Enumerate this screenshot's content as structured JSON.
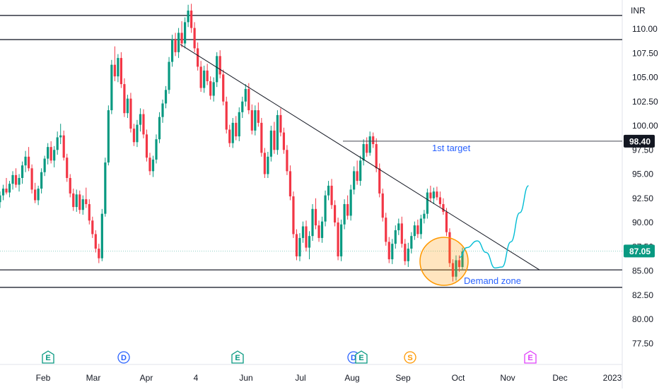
{
  "chart_data": {
    "type": "candlestick",
    "currency": "INR",
    "price_axis": {
      "ticks": [
        "110.00",
        "107.50",
        "105.00",
        "102.50",
        "100.00",
        "97.50",
        "95.00",
        "92.50",
        "90.00",
        "87.50",
        "85.00",
        "82.50",
        "80.00",
        "77.50"
      ],
      "range": [
        76.2,
        112.6
      ]
    },
    "time_axis": {
      "ticks": [
        "Feb",
        "Mar",
        "Apr",
        "4",
        "Jun",
        "Jul",
        "Aug",
        "Sep",
        "Oct",
        "Nov",
        "Dec",
        "2023"
      ]
    },
    "candles": [
      [
        92.1,
        93.2,
        91.5,
        92.8
      ],
      [
        92.8,
        93.9,
        92.3,
        93.5
      ],
      [
        93.5,
        94.6,
        92.9,
        93.1
      ],
      [
        93.1,
        94.3,
        92.6,
        94.0
      ],
      [
        94.0,
        95.3,
        93.4,
        94.9
      ],
      [
        94.9,
        95.6,
        93.6,
        93.9
      ],
      [
        93.9,
        95.0,
        93.2,
        94.6
      ],
      [
        94.6,
        96.3,
        94.0,
        95.9
      ],
      [
        95.9,
        97.4,
        95.2,
        96.8
      ],
      [
        96.8,
        97.8,
        95.3,
        95.6
      ],
      [
        95.6,
        96.0,
        93.0,
        93.4
      ],
      [
        93.4,
        94.1,
        92.0,
        92.3
      ],
      [
        92.3,
        93.8,
        91.8,
        93.5
      ],
      [
        93.5,
        95.6,
        93.0,
        95.2
      ],
      [
        95.2,
        96.9,
        94.8,
        96.6
      ],
      [
        96.6,
        98.2,
        96.0,
        97.8
      ],
      [
        97.8,
        98.4,
        96.1,
        96.4
      ],
      [
        96.4,
        97.9,
        95.7,
        97.5
      ],
      [
        97.5,
        99.4,
        97.0,
        98.8
      ],
      [
        98.8,
        100.2,
        98.1,
        99.0
      ],
      [
        99.0,
        99.5,
        96.4,
        96.7
      ],
      [
        96.7,
        97.1,
        94.2,
        94.6
      ],
      [
        94.6,
        95.0,
        92.6,
        93.0
      ],
      [
        93.0,
        93.5,
        91.2,
        91.6
      ],
      [
        91.6,
        93.4,
        91.1,
        92.9
      ],
      [
        92.9,
        93.3,
        90.9,
        91.3
      ],
      [
        91.3,
        92.8,
        90.8,
        92.4
      ],
      [
        92.4,
        93.6,
        91.5,
        91.9
      ],
      [
        91.9,
        92.4,
        89.8,
        90.2
      ],
      [
        90.2,
        90.6,
        88.4,
        88.8
      ],
      [
        88.8,
        89.2,
        86.9,
        87.3
      ],
      [
        87.3,
        87.8,
        85.8,
        86.3
      ],
      [
        86.3,
        91.4,
        86.0,
        90.9
      ],
      [
        90.9,
        96.7,
        90.6,
        96.2
      ],
      [
        96.2,
        102.1,
        95.9,
        101.6
      ],
      [
        101.6,
        106.8,
        101.2,
        106.3
      ],
      [
        106.3,
        108.2,
        104.6,
        105.1
      ],
      [
        105.1,
        107.4,
        104.5,
        107.0
      ],
      [
        107.0,
        107.6,
        103.9,
        104.3
      ],
      [
        104.3,
        104.9,
        100.9,
        101.3
      ],
      [
        101.3,
        103.2,
        100.8,
        102.8
      ],
      [
        102.8,
        103.4,
        99.3,
        99.7
      ],
      [
        99.7,
        100.2,
        97.9,
        98.3
      ],
      [
        98.3,
        100.6,
        97.8,
        100.1
      ],
      [
        100.1,
        101.8,
        99.4,
        101.2
      ],
      [
        101.2,
        101.7,
        98.7,
        99.1
      ],
      [
        99.1,
        99.6,
        96.3,
        96.7
      ],
      [
        96.7,
        97.2,
        94.9,
        95.3
      ],
      [
        95.3,
        96.9,
        94.7,
        96.5
      ],
      [
        96.5,
        99.1,
        96.1,
        98.6
      ],
      [
        98.6,
        101.4,
        98.2,
        100.9
      ],
      [
        100.9,
        102.7,
        100.3,
        102.3
      ],
      [
        102.3,
        104.1,
        101.8,
        103.7
      ],
      [
        103.7,
        107.1,
        103.3,
        106.6
      ],
      [
        106.6,
        109.4,
        106.1,
        108.9
      ],
      [
        108.9,
        109.6,
        107.2,
        107.6
      ],
      [
        107.6,
        110.1,
        107.0,
        109.6
      ],
      [
        109.6,
        110.8,
        108.1,
        108.5
      ],
      [
        108.5,
        111.2,
        108.0,
        110.7
      ],
      [
        110.7,
        112.5,
        110.2,
        111.9
      ],
      [
        111.9,
        112.6,
        109.6,
        110.1
      ],
      [
        110.1,
        110.7,
        107.6,
        108.0
      ],
      [
        108.0,
        108.6,
        105.7,
        106.1
      ],
      [
        106.1,
        106.7,
        103.5,
        103.9
      ],
      [
        103.9,
        106.2,
        103.4,
        105.7
      ],
      [
        105.7,
        106.4,
        104.2,
        104.6
      ],
      [
        104.6,
        105.1,
        102.7,
        103.1
      ],
      [
        103.1,
        105.0,
        102.5,
        104.5
      ],
      [
        104.5,
        107.6,
        104.0,
        107.2
      ],
      [
        107.2,
        107.8,
        104.9,
        105.3
      ],
      [
        105.3,
        105.8,
        102.1,
        102.5
      ],
      [
        102.5,
        103.0,
        99.2,
        99.6
      ],
      [
        99.6,
        100.1,
        97.8,
        98.2
      ],
      [
        98.2,
        100.8,
        97.7,
        100.3
      ],
      [
        100.3,
        101.0,
        98.5,
        98.9
      ],
      [
        98.9,
        101.9,
        98.4,
        101.4
      ],
      [
        101.4,
        103.0,
        100.8,
        102.5
      ],
      [
        102.5,
        104.3,
        102.0,
        103.8
      ],
      [
        103.8,
        104.4,
        101.2,
        101.6
      ],
      [
        101.6,
        102.2,
        99.1,
        99.5
      ],
      [
        99.5,
        102.1,
        99.0,
        101.6
      ],
      [
        101.6,
        102.4,
        99.9,
        100.3
      ],
      [
        100.3,
        100.8,
        96.8,
        97.2
      ],
      [
        97.2,
        97.7,
        94.6,
        95.0
      ],
      [
        95.0,
        97.3,
        94.6,
        96.8
      ],
      [
        96.8,
        100.0,
        96.3,
        99.5
      ],
      [
        99.5,
        100.4,
        97.1,
        97.5
      ],
      [
        97.5,
        101.6,
        97.0,
        101.1
      ],
      [
        101.1,
        101.8,
        98.9,
        99.3
      ],
      [
        99.3,
        99.8,
        97.1,
        97.5
      ],
      [
        97.5,
        98.0,
        94.9,
        95.3
      ],
      [
        95.3,
        95.9,
        92.3,
        92.7
      ],
      [
        92.7,
        93.2,
        88.4,
        88.8
      ],
      [
        88.8,
        89.3,
        86.1,
        86.5
      ],
      [
        86.5,
        88.9,
        86.0,
        88.4
      ],
      [
        88.4,
        90.1,
        87.9,
        89.6
      ],
      [
        89.6,
        90.2,
        87.0,
        87.4
      ],
      [
        87.4,
        89.1,
        86.2,
        88.6
      ],
      [
        88.6,
        91.9,
        88.1,
        91.4
      ],
      [
        91.4,
        92.5,
        89.3,
        89.7
      ],
      [
        89.7,
        90.2,
        88.0,
        88.4
      ],
      [
        88.4,
        90.6,
        87.9,
        90.1
      ],
      [
        90.1,
        93.3,
        89.6,
        92.8
      ],
      [
        92.8,
        94.3,
        92.3,
        93.8
      ],
      [
        93.8,
        94.5,
        91.4,
        91.8
      ],
      [
        91.8,
        92.3,
        89.6,
        90.0
      ],
      [
        90.0,
        90.5,
        86.1,
        86.5
      ],
      [
        86.5,
        90.3,
        86.0,
        89.8
      ],
      [
        89.8,
        92.4,
        89.3,
        91.9
      ],
      [
        91.9,
        92.8,
        90.3,
        90.7
      ],
      [
        90.7,
        93.9,
        90.2,
        93.4
      ],
      [
        93.4,
        95.8,
        92.9,
        95.3
      ],
      [
        95.3,
        96.4,
        93.9,
        94.3
      ],
      [
        94.3,
        96.9,
        93.8,
        96.4
      ],
      [
        96.4,
        98.6,
        95.9,
        98.1
      ],
      [
        98.1,
        98.8,
        96.8,
        97.2
      ],
      [
        97.2,
        99.4,
        96.9,
        98.9
      ],
      [
        98.9,
        99.3,
        97.7,
        98.1
      ],
      [
        98.1,
        98.7,
        95.2,
        95.6
      ],
      [
        95.6,
        96.1,
        92.6,
        93.0
      ],
      [
        93.0,
        93.5,
        90.1,
        90.5
      ],
      [
        90.5,
        91.0,
        87.6,
        88.0
      ],
      [
        88.0,
        88.5,
        85.8,
        86.2
      ],
      [
        86.2,
        88.3,
        85.7,
        87.8
      ],
      [
        87.8,
        89.7,
        87.3,
        89.2
      ],
      [
        89.2,
        90.4,
        88.7,
        89.9
      ],
      [
        89.9,
        90.6,
        87.4,
        87.8
      ],
      [
        87.8,
        88.3,
        85.6,
        86.0
      ],
      [
        86.0,
        87.9,
        85.4,
        87.3
      ],
      [
        87.3,
        89.0,
        86.8,
        88.6
      ],
      [
        88.6,
        90.1,
        88.2,
        89.7
      ],
      [
        89.7,
        90.3,
        88.4,
        88.8
      ],
      [
        88.8,
        90.8,
        88.3,
        90.4
      ],
      [
        90.4,
        91.3,
        89.9,
        90.9
      ],
      [
        90.9,
        93.5,
        90.4,
        93.1
      ],
      [
        93.1,
        93.8,
        92.1,
        92.5
      ],
      [
        92.5,
        93.6,
        91.9,
        93.2
      ],
      [
        93.2,
        93.7,
        92.3,
        92.6
      ],
      [
        92.6,
        93.2,
        91.6,
        91.9
      ],
      [
        91.9,
        92.5,
        90.8,
        91.1
      ],
      [
        91.1,
        91.5,
        88.6,
        89.0
      ],
      [
        89.0,
        89.4,
        85.4,
        85.8
      ],
      [
        85.8,
        86.2,
        83.9,
        84.4
      ],
      [
        84.4,
        86.6,
        84.0,
        86.1
      ],
      [
        86.1,
        86.6,
        84.9,
        85.4
      ],
      [
        85.4,
        87.4,
        85.1,
        87.0
      ]
    ],
    "current_price": "87.05",
    "target_level": "98.40",
    "horizontal_levels": [
      111.4,
      108.9,
      85.1,
      83.3
    ],
    "trendline": {
      "from": [
        8.5,
        108.4
      ],
      "to": [
        24.3,
        85.1
      ]
    },
    "projection": [
      [
        23.35,
        86.4
      ],
      [
        23.55,
        87.4
      ],
      [
        23.85,
        88.1
      ],
      [
        24.1,
        86.9
      ],
      [
        24.35,
        85.3
      ],
      [
        24.55,
        85.4
      ],
      [
        24.8,
        88.0
      ],
      [
        25.05,
        91.0
      ],
      [
        25.3,
        93.8
      ]
    ],
    "demand_zone": {
      "x": 21.2,
      "y": 86.9
    },
    "labels": {
      "target": "1st target",
      "demand": "Demand zone"
    },
    "events": [
      {
        "letter": "E",
        "color": "#089981",
        "x": 2.2
      },
      {
        "letter": "D",
        "color": "#2962ff",
        "x": 5.85
      },
      {
        "letter": "E",
        "color": "#089981",
        "x": 11.25
      },
      {
        "letter": "D",
        "color": "#2962ff",
        "x": 16.65
      },
      {
        "letter": "E",
        "color": "#089981",
        "x": 17.0
      },
      {
        "letter": "S",
        "color": "#ff9800",
        "x": 19.4
      },
      {
        "letter": "E",
        "color": "#e040fb",
        "x": 25.0
      }
    ],
    "colors": {
      "up": "#089981",
      "down": "#f23645",
      "trend": "#131722",
      "level": "#434651",
      "projection": "#00bcd4",
      "zone": "#ff9800",
      "annotation": "#2962ff"
    },
    "grid": false
  }
}
